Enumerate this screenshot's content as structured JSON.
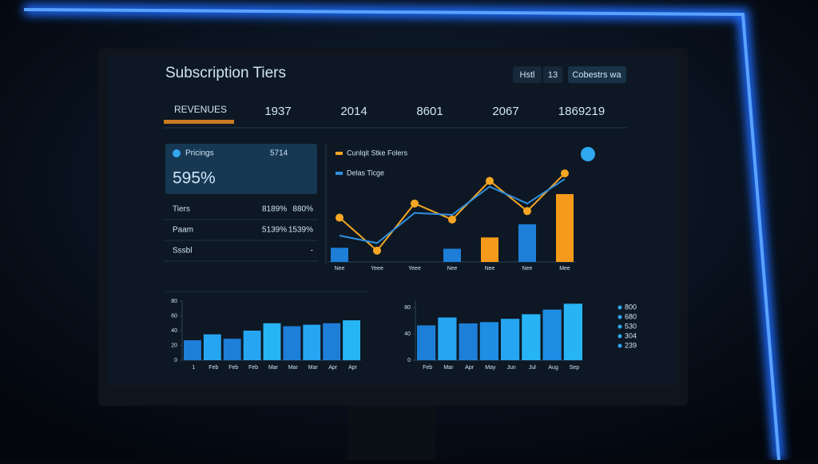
{
  "header": {
    "title": "Subscription Tiers",
    "buttons": [
      "Hstl",
      "13",
      "Cobestrs wa"
    ]
  },
  "kpis": {
    "label": "REVENUES",
    "values": [
      "1937",
      "2014",
      "8601",
      "2067",
      "1869219"
    ]
  },
  "summary": {
    "title": "Pricings",
    "value": "5714",
    "big": "595%",
    "rows": [
      {
        "name": "Tiers",
        "a": "8189%",
        "b": "880%"
      },
      {
        "name": "Paam",
        "a": "5139%",
        "b": "1539%"
      },
      {
        "name": "Sssbl",
        "b": "-"
      }
    ]
  },
  "combo": {
    "categories": [
      "Nee",
      "Yeee",
      "Yeee",
      "Nee",
      "Nee",
      "Nee",
      "Mee"
    ],
    "bars": {
      "values": [
        15,
        null,
        null,
        14,
        26,
        40,
        72
      ],
      "colors": [
        "#1e7fd8",
        "#1e7fd8",
        "#1e7fd8",
        "#1e7fd8",
        "#f59a1a",
        "#1e7fd8",
        "#f59a1a"
      ]
    },
    "lines": [
      {
        "name": "Cunlqit Stke Folers",
        "color": "#f5a623",
        "values": [
          47,
          12,
          62,
          45,
          86,
          54,
          94
        ]
      },
      {
        "name": "Delas Ticge",
        "color": "#2f8fe0",
        "values": [
          28,
          20,
          52,
          50,
          80,
          62,
          88
        ]
      }
    ],
    "ylim": [
      0,
      100
    ]
  },
  "left_chart": {
    "categories": [
      "1",
      "Feb",
      "Feb",
      "Feb",
      "Mar",
      "Mar",
      "Mar",
      "Apr",
      "Apr"
    ],
    "values": [
      27,
      35,
      29,
      40,
      50,
      46,
      48,
      50,
      54
    ],
    "colors": [
      "#1e7fd8",
      "#26a6f2",
      "#1e7fd8",
      "#26a6f2",
      "#26b4f5",
      "#1e7fd8",
      "#26a6f2",
      "#1e7fd8",
      "#26b4f5"
    ],
    "ylim": [
      0,
      80
    ],
    "yticks": [
      0,
      20,
      40,
      60,
      80
    ]
  },
  "right_chart": {
    "categories": [
      "Feb",
      "Mar",
      "Apr",
      "May",
      "Jun",
      "Jul",
      "Aug",
      "Sep"
    ],
    "values": [
      53,
      65,
      56,
      58,
      63,
      70,
      77,
      86
    ],
    "colors": [
      "#1e7fd8",
      "#26a6f2",
      "#1e7fd8",
      "#1e8ee4",
      "#26a6f2",
      "#26b4f5",
      "#1e8ee4",
      "#26b4f5"
    ],
    "ylim": [
      0,
      90
    ],
    "yticks": [
      0,
      40,
      80
    ]
  },
  "legend": [
    "800",
    "680",
    "530",
    "304",
    "239"
  ]
}
